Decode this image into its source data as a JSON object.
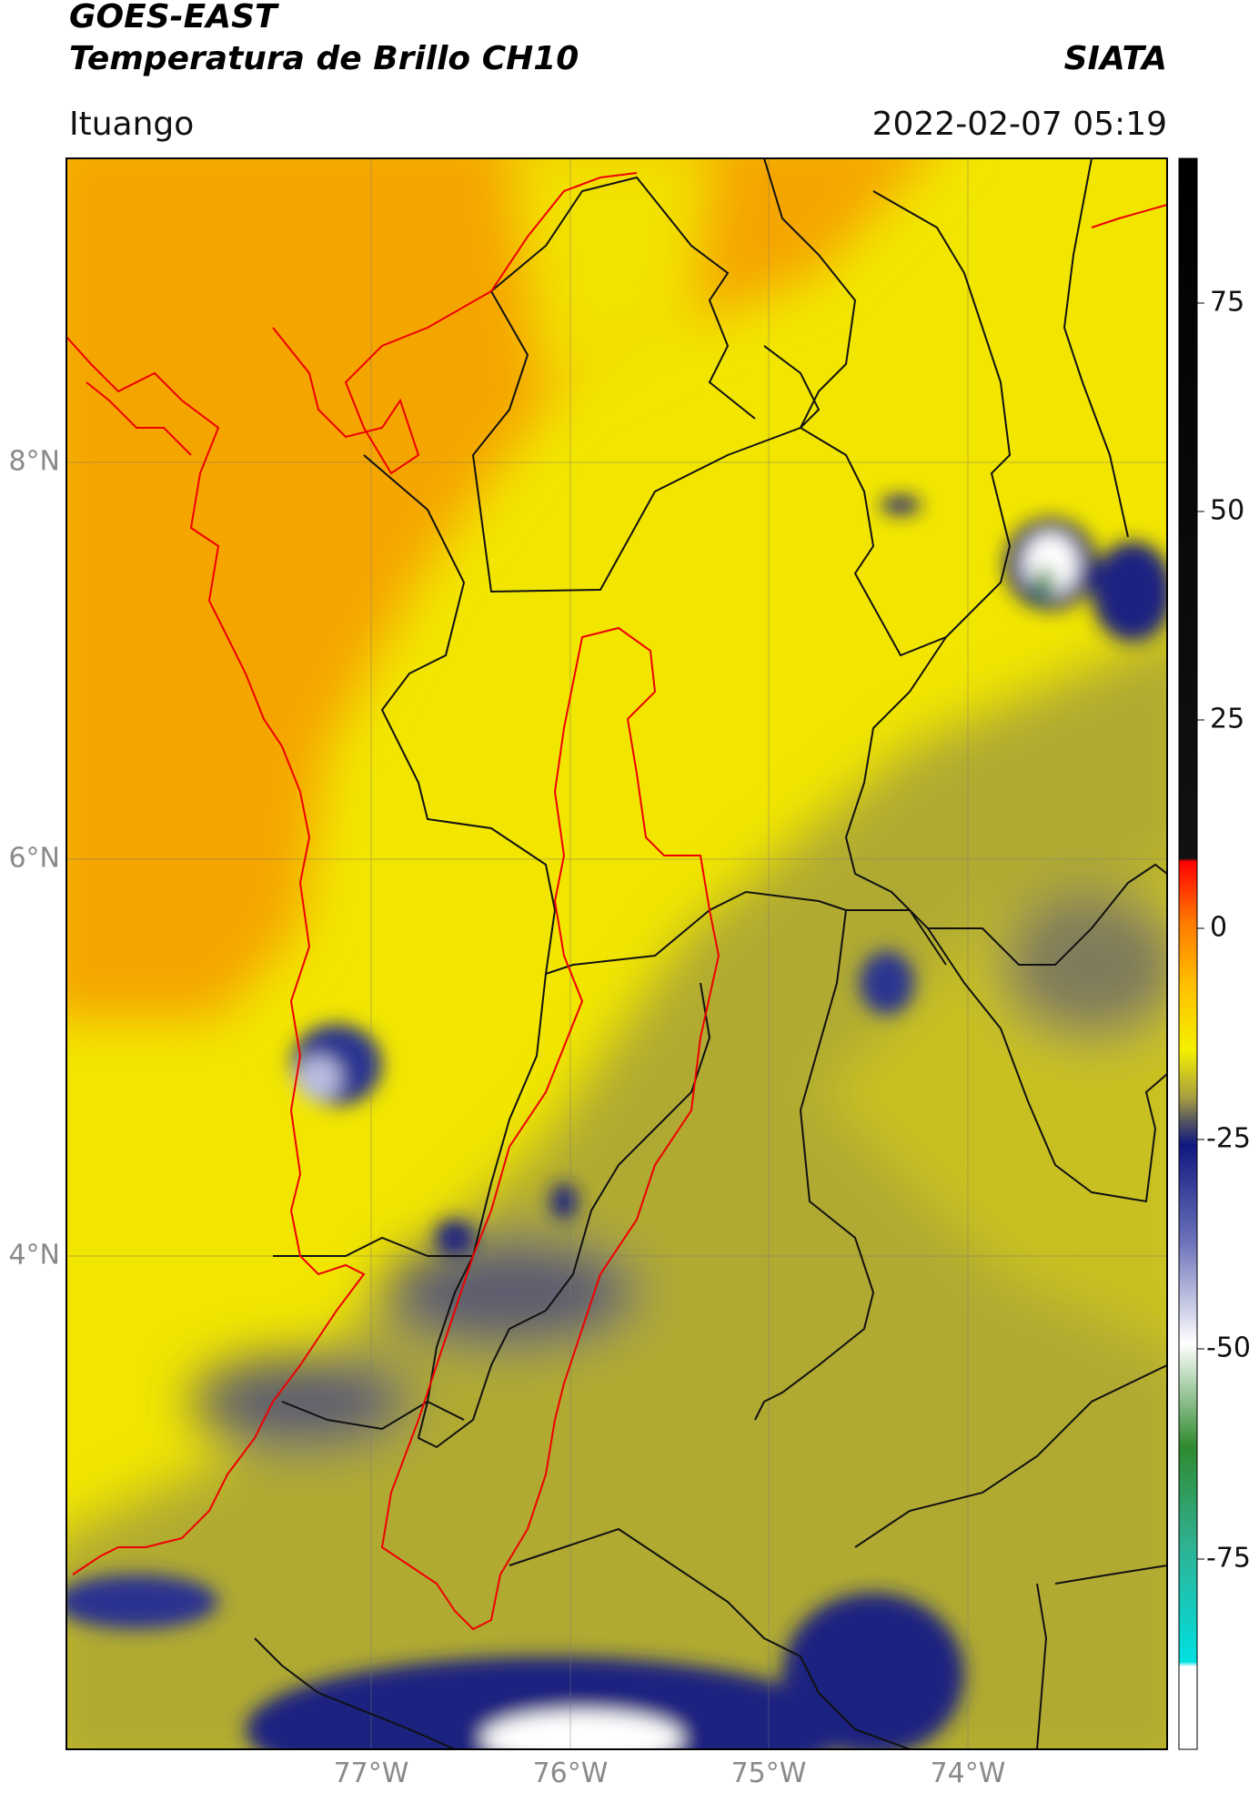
{
  "header": {
    "title": "GOES-EAST",
    "subtitle": "Temperatura de Brillo CH10",
    "brand": "SIATA",
    "location": "Ituango",
    "timestamp": "2022-02-07 05:19"
  },
  "map": {
    "lat_labels": [
      "8°N",
      "6°N",
      "4°N"
    ],
    "lon_labels": [
      "77°W",
      "76°W",
      "75°W",
      "74°W"
    ]
  },
  "colorbar": {
    "ticks": [
      75,
      50,
      25,
      0,
      -25,
      -50,
      -75
    ]
  }
}
